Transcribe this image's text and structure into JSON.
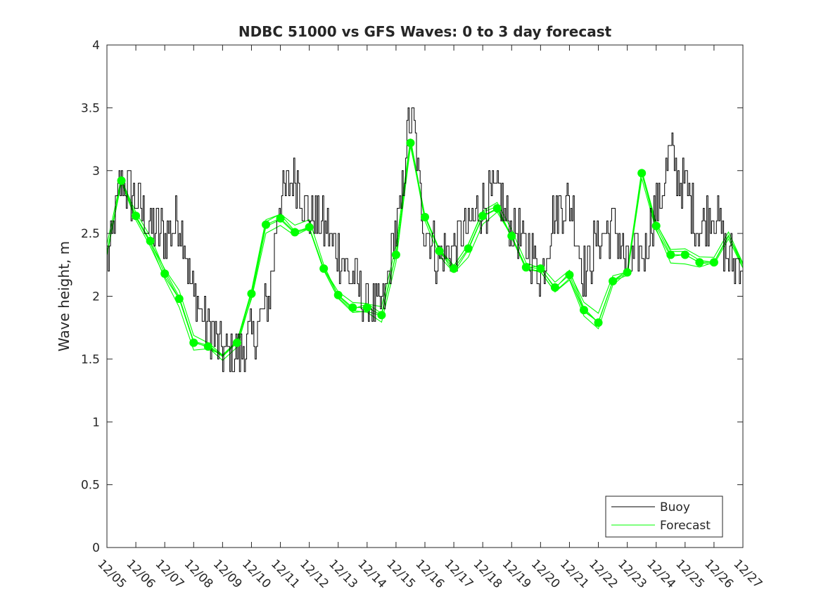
{
  "chart_data": {
    "type": "line",
    "title": "NDBC 51000 vs GFS Waves: 0 to 3 day forecast",
    "xlabel": "",
    "ylabel": "Wave height, m",
    "xlim": [
      0,
      22
    ],
    "ylim": [
      0,
      4
    ],
    "yticks": [
      0,
      0.5,
      1,
      1.5,
      2,
      2.5,
      3,
      3.5,
      4
    ],
    "ytick_labels": [
      "0",
      "0.5",
      "1",
      "1.5",
      "2",
      "2.5",
      "3",
      "3.5",
      "4"
    ],
    "xtick_labels": [
      "12/05",
      "12/06",
      "12/07",
      "12/08",
      "12/09",
      "12/10",
      "12/11",
      "12/12",
      "12/13",
      "12/14",
      "12/15",
      "12/16",
      "12/17",
      "12/18",
      "12/19",
      "12/20",
      "12/21",
      "12/22",
      "12/23",
      "12/24",
      "12/25",
      "12/26",
      "12/27"
    ],
    "legend": {
      "location": "bottom-right",
      "entries": [
        "Buoy",
        "Forecast"
      ]
    },
    "colors": {
      "buoy": "#000000",
      "forecast": "#00ff00",
      "axis": "#262626"
    },
    "forecast_x": [
      0,
      0.5,
      1,
      1.5,
      2,
      2.5,
      3,
      3.5,
      4,
      4.5,
      5,
      5.5,
      6,
      6.5,
      7,
      7.5,
      8,
      8.5,
      9,
      9.5,
      10,
      10.5,
      11,
      11.5,
      12,
      12.5,
      13,
      13.5,
      14,
      14.5,
      15,
      15.5,
      16,
      16.5,
      17,
      17.5,
      18,
      18.5,
      19,
      19.5,
      20,
      20.5,
      21,
      21.5,
      22
    ],
    "series": [
      {
        "name": "Buoy",
        "x": [
          0,
          0.5,
          1,
          1.5,
          2,
          2.5,
          3,
          3.5,
          4,
          4.5,
          5,
          5.5,
          6,
          6.5,
          7,
          7.5,
          8,
          8.5,
          9,
          9.5,
          10,
          10.5,
          11,
          11.5,
          12,
          12.5,
          13,
          13.5,
          14,
          14.5,
          15,
          15.5,
          16,
          16.5,
          17,
          17.5,
          18,
          18.5,
          19,
          19.5,
          20,
          20.5,
          21,
          21.5,
          22
        ],
        "values": [
          2.3,
          2.9,
          2.75,
          2.55,
          2.5,
          2.6,
          2.0,
          1.75,
          1.55,
          1.55,
          1.65,
          1.9,
          2.75,
          2.95,
          2.65,
          2.55,
          2.35,
          2.15,
          1.95,
          1.9,
          2.5,
          3.4,
          2.55,
          2.3,
          2.4,
          2.55,
          2.75,
          2.8,
          2.55,
          2.4,
          2.2,
          2.65,
          2.75,
          2.2,
          2.45,
          2.55,
          2.25,
          2.35,
          2.7,
          3.1,
          2.85,
          2.55,
          2.7,
          2.3,
          2.25
        ]
      },
      {
        "name": "Forecast",
        "values": [
          2.35,
          2.92,
          2.64,
          2.44,
          2.18,
          1.98,
          1.63,
          1.6,
          1.52,
          1.63,
          2.02,
          2.57,
          2.62,
          2.51,
          2.55,
          2.22,
          2.01,
          1.91,
          1.91,
          1.85,
          2.33,
          3.22,
          2.63,
          2.36,
          2.22,
          2.38,
          2.64,
          2.7,
          2.48,
          2.23,
          2.22,
          2.07,
          2.17,
          1.89,
          1.79,
          2.12,
          2.19,
          2.98,
          2.56,
          2.33,
          2.33,
          2.27,
          2.27,
          2.48,
          2.25
        ]
      }
    ],
    "forecast_markers": {
      "x": [
        0.5,
        1,
        1.5,
        2,
        2.5,
        3,
        3.5,
        4.5,
        5,
        5.5,
        6,
        6.5,
        7,
        7.5,
        8,
        8.5,
        9,
        9.5,
        10,
        10.5,
        11,
        11.5,
        12,
        12.5,
        13,
        13.5,
        14,
        14.5,
        15,
        15.5,
        16,
        16.5,
        17,
        17.5,
        18,
        18.5,
        19,
        19.5,
        20,
        20.5,
        21
      ],
      "values": [
        2.92,
        2.64,
        2.44,
        2.18,
        1.98,
        1.63,
        1.6,
        1.63,
        2.02,
        2.57,
        2.62,
        2.51,
        2.55,
        2.22,
        2.01,
        1.91,
        1.91,
        1.85,
        2.33,
        3.22,
        2.63,
        2.36,
        2.22,
        2.38,
        2.64,
        2.7,
        2.48,
        2.23,
        2.22,
        2.07,
        2.17,
        1.89,
        1.79,
        2.12,
        2.19,
        2.98,
        2.56,
        2.33,
        2.33,
        2.27,
        2.27
      ]
    }
  }
}
